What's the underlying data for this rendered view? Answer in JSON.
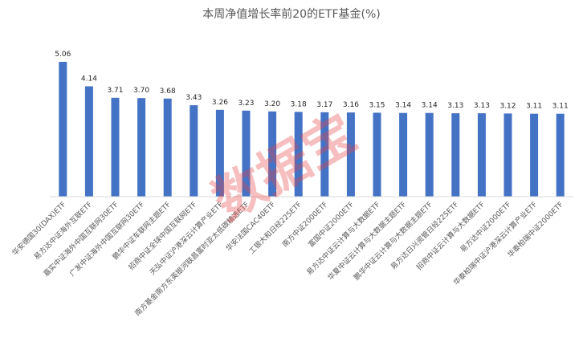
{
  "chart_data": {
    "type": "bar",
    "title": "本周净值增长率前20的ETF基金(%)",
    "xlabel": "",
    "ylabel": "",
    "ylim": [
      0,
      5.06
    ],
    "grid": false,
    "legend": "none",
    "bar_color": "#4472C4",
    "categories": [
      "华安德国30(DAX)ETF",
      "易方达中证海外互联ETF",
      "嘉实中证海外中国互联网30ETF",
      "广发中证海外中国互联网30ETF",
      "鹏华中证车联网主题ETF",
      "招商中证全球中国互联网ETF",
      "天弘中证沪港深云计算产业ETF",
      "南方基金南方东英银河联昌富时亚太低碳精选ETF",
      "华安法国CAC40ETF",
      "工银大和日经225ETF",
      "南方中证2000ETF",
      "富国中证2000ETF",
      "易方达中证云计算与大数据ETF",
      "华夏中证云计算与大数据主题ETF",
      "鹏华中证云计算与大数据主题ETF",
      "易方达日兴资管日经225ETF",
      "招商中证云计算与大数据ETF",
      "易方达中证2000ETF",
      "华泰柏瑞中证沪港深云计算产业ETF",
      "华泰柏瑞中证2000ETF"
    ],
    "values": [
      5.06,
      4.14,
      3.71,
      3.7,
      3.68,
      3.43,
      3.26,
      3.23,
      3.2,
      3.18,
      3.17,
      3.16,
      3.15,
      3.14,
      3.14,
      3.13,
      3.13,
      3.12,
      3.11,
      3.11
    ],
    "value_labels": [
      "5.06",
      "4.14",
      "3.71",
      "3.70",
      "3.68",
      "3.43",
      "3.26",
      "3.23",
      "3.20",
      "3.18",
      "3.17",
      "3.16",
      "3.15",
      "3.14",
      "3.14",
      "3.13",
      "3.13",
      "3.12",
      "3.11",
      "3.11"
    ]
  },
  "watermark": {
    "text": "数据宝",
    "color": "#e8474a"
  }
}
